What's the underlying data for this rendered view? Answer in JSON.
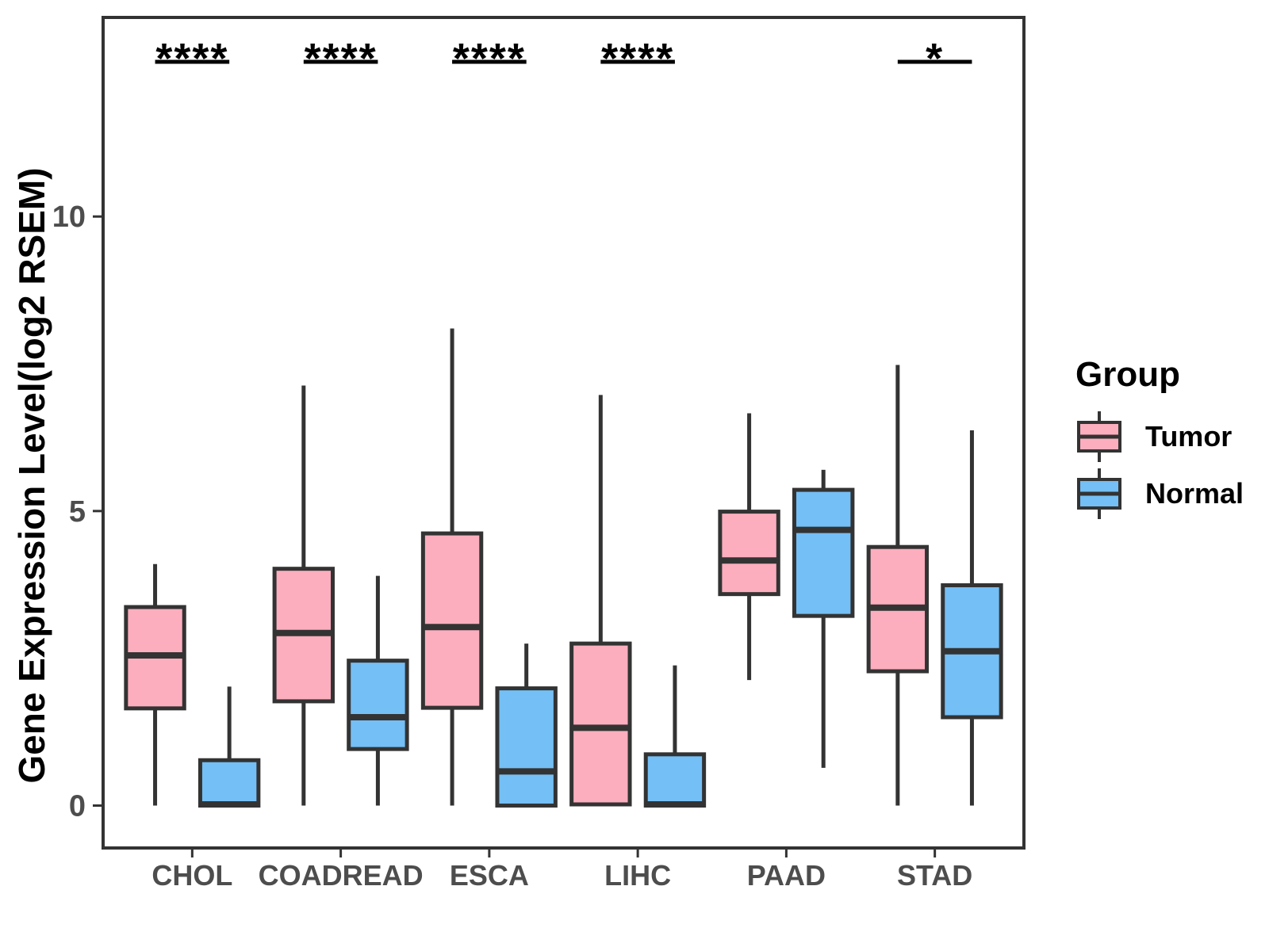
{
  "chart_data": {
    "type": "boxplot",
    "title": "",
    "xlabel": "",
    "ylabel": "Gene Expression Level(log2 RSEM)",
    "yticks": [
      0,
      5,
      10
    ],
    "ylim": [
      -0.72,
      13.38
    ],
    "grid": "off",
    "legend_position": "right",
    "categories": [
      "CHOL",
      "COADREAD",
      "ESCA",
      "LIHC",
      "PAAD",
      "STAD"
    ],
    "groups": [
      {
        "name": "Tumor",
        "color": "#FCAEBE"
      },
      {
        "name": "Normal",
        "color": "#74BFF5"
      }
    ],
    "series": [
      {
        "category": "CHOL",
        "group": "Tumor",
        "min": 0,
        "q1": 1.65,
        "median": 2.55,
        "q3": 3.37,
        "max": 4.1
      },
      {
        "category": "CHOL",
        "group": "Normal",
        "min": 0,
        "q1": 0,
        "median": 0.02,
        "q3": 0.77,
        "max": 2.02
      },
      {
        "category": "COADREAD",
        "group": "Tumor",
        "min": 0,
        "q1": 1.77,
        "median": 2.93,
        "q3": 4.02,
        "max": 7.13
      },
      {
        "category": "COADREAD",
        "group": "Normal",
        "min": 0,
        "q1": 0.96,
        "median": 1.5,
        "q3": 2.46,
        "max": 3.9
      },
      {
        "category": "ESCA",
        "group": "Tumor",
        "min": 0,
        "q1": 1.66,
        "median": 3.03,
        "q3": 4.62,
        "max": 8.1
      },
      {
        "category": "ESCA",
        "group": "Normal",
        "min": 0,
        "q1": 0,
        "median": 0.58,
        "q3": 1.99,
        "max": 2.75
      },
      {
        "category": "LIHC",
        "group": "Tumor",
        "min": 0,
        "q1": 0.02,
        "median": 1.32,
        "q3": 2.75,
        "max": 6.97
      },
      {
        "category": "LIHC",
        "group": "Normal",
        "min": 0,
        "q1": 0,
        "median": 0.02,
        "q3": 0.87,
        "max": 2.38
      },
      {
        "category": "PAAD",
        "group": "Tumor",
        "min": 2.13,
        "q1": 3.59,
        "median": 4.16,
        "q3": 4.99,
        "max": 6.66
      },
      {
        "category": "PAAD",
        "group": "Normal",
        "min": 0.64,
        "q1": 3.22,
        "median": 4.68,
        "q3": 5.36,
        "max": 5.7
      },
      {
        "category": "STAD",
        "group": "Tumor",
        "min": 0,
        "q1": 2.28,
        "median": 3.36,
        "q3": 4.39,
        "max": 7.48
      },
      {
        "category": "STAD",
        "group": "Normal",
        "min": 0,
        "q1": 1.5,
        "median": 2.62,
        "q3": 3.74,
        "max": 6.37
      }
    ],
    "significance": [
      {
        "category": "CHOL",
        "label": "****"
      },
      {
        "category": "COADREAD",
        "label": "****"
      },
      {
        "category": "ESCA",
        "label": "****"
      },
      {
        "category": "LIHC",
        "label": "****"
      },
      {
        "category": "STAD",
        "label": "*"
      }
    ],
    "legend": {
      "title": "Group",
      "items": [
        "Tumor",
        "Normal"
      ]
    },
    "colors": {
      "stroke": "#333333",
      "axis_text": "#4d4d4d",
      "significance": "#000000",
      "background": "#ffffff"
    }
  }
}
